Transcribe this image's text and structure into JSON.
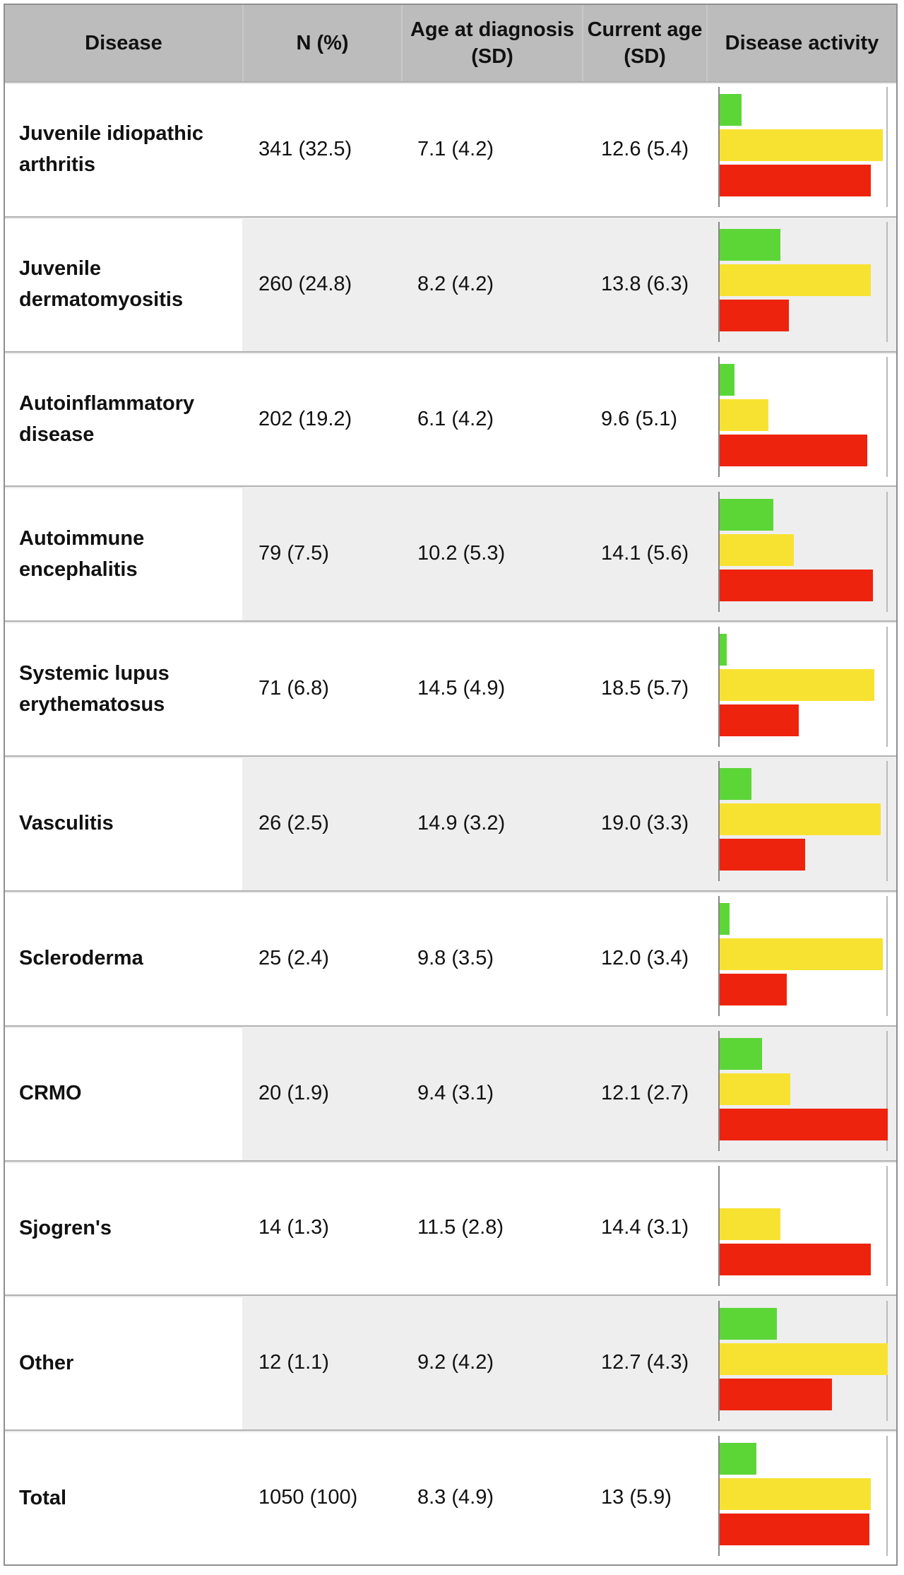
{
  "header": {
    "columns": [
      {
        "label": "Disease"
      },
      {
        "label": "N (%)"
      },
      {
        "label": "Age at diagnosis (SD)"
      },
      {
        "label": "Current age (SD)"
      },
      {
        "label": "Disease activity"
      }
    ]
  },
  "rows": [
    {
      "disease": "Juvenile idiopathic arthritis",
      "n": "341 (32.5)",
      "age_at_diagnosis": "7.1 (4.2)",
      "current_age": "12.6 (5.4)"
    },
    {
      "disease": "Juvenile dermatomyositis",
      "n": "260 (24.8)",
      "age_at_diagnosis": "8.2 (4.2)",
      "current_age": "13.8 (6.3)"
    },
    {
      "disease": "Autoinflammatory disease",
      "n": "202 (19.2)",
      "age_at_diagnosis": "6.1 (4.2)",
      "current_age": "9.6 (5.1)"
    },
    {
      "disease": "Autoimmune encephalitis",
      "n": "79 (7.5)",
      "age_at_diagnosis": "10.2 (5.3)",
      "current_age": "14.1 (5.6)"
    },
    {
      "disease": "Systemic lupus erythematosus",
      "n": "71 (6.8)",
      "age_at_diagnosis": "14.5 (4.9)",
      "current_age": "18.5 (5.7)"
    },
    {
      "disease": "Vasculitis",
      "n": "26 (2.5)",
      "age_at_diagnosis": "14.9 (3.2)",
      "current_age": "19.0 (3.3)"
    },
    {
      "disease": "Scleroderma",
      "n": "25 (2.4)",
      "age_at_diagnosis": "9.8 (3.5)",
      "current_age": "12.0 (3.4)"
    },
    {
      "disease": "CRMO",
      "n": "20 (1.9)",
      "age_at_diagnosis": "9.4 (3.1)",
      "current_age": "12.1 (2.7)"
    },
    {
      "disease": "Sjogren's",
      "n": "14 (1.3)",
      "age_at_diagnosis": "11.5 (2.8)",
      "current_age": "14.4 (3.1)"
    },
    {
      "disease": "Other",
      "n": "12 (1.1)",
      "age_at_diagnosis": "9.2 (4.2)",
      "current_age": "12.7 (4.3)"
    },
    {
      "disease": "Total",
      "n": "1050 (100)",
      "age_at_diagnosis": "8.3 (4.9)",
      "current_age": "13 (5.9)"
    }
  ],
  "chart_data": {
    "type": "bar",
    "orientation": "horizontal",
    "title": "Disease activity",
    "categories": [
      "Juvenile idiopathic arthritis",
      "Juvenile dermatomyositis",
      "Autoinflammatory disease",
      "Autoimmune encephalitis",
      "Systemic lupus erythematosus",
      "Vasculitis",
      "Scleroderma",
      "CRMO",
      "Sjogren's",
      "Other",
      "Total"
    ],
    "series": [
      {
        "name": "green",
        "color": "#5cd637",
        "values": [
          13,
          36,
          9,
          32,
          4,
          19,
          6,
          25,
          0,
          34,
          22
        ]
      },
      {
        "name": "yellow",
        "color": "#f8e231",
        "values": [
          97,
          90,
          29,
          44,
          92,
          96,
          97,
          42,
          36,
          100,
          90
        ]
      },
      {
        "name": "red",
        "color": "#ee230d",
        "values": [
          90,
          41,
          88,
          91,
          47,
          51,
          40,
          100,
          90,
          67,
          89
        ]
      }
    ],
    "xlim": [
      0,
      100
    ],
    "value_units": "percent of chart width (no numeric axis labels shown; values estimated from bar lengths)",
    "grid": "single right boundary gridline and left axis line per row",
    "legend": "none"
  },
  "colors": {
    "header_bg": "#bcbcbc",
    "stripe_bg": "#eeeeee",
    "table_border": "#8f8f8f",
    "row_divider": "#b2b2b2",
    "axis_line": "#868686",
    "gridline": "#bababa",
    "bar_green": "#5cd637",
    "bar_yellow": "#f8e231",
    "bar_red": "#ee230d"
  }
}
